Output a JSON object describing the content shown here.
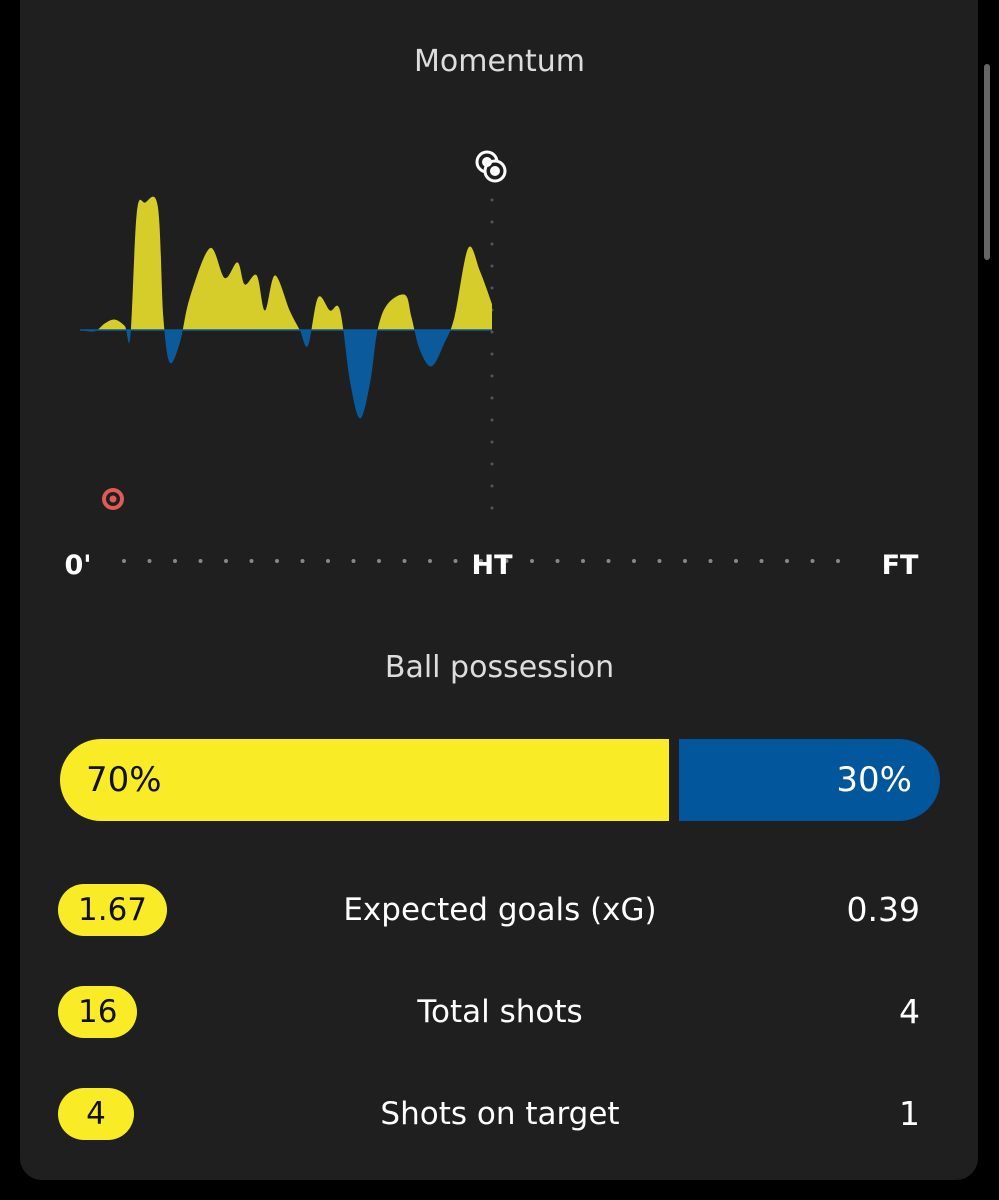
{
  "title": "Momentum",
  "momentum": {
    "type": "area",
    "x": [
      0,
      1.6,
      2.7,
      3.8,
      4.9,
      5.5,
      6.2,
      7.1,
      8.5,
      9.1,
      9.8,
      10.9,
      12,
      14.2,
      15.8,
      17.2,
      18,
      19.3,
      20.2,
      21.3,
      22.9,
      24,
      24.9,
      26,
      27.3,
      28.4,
      29.5,
      30.6,
      31.7,
      32.5,
      33.6,
      35.5,
      36.2,
      37.1,
      38.4,
      39.8,
      40.9,
      42.4,
      43.7,
      45
    ],
    "values": [
      0,
      -1,
      5,
      8,
      3,
      -5,
      90,
      98,
      95,
      10,
      -25,
      -10,
      25,
      63,
      40,
      52,
      35,
      42,
      15,
      42,
      15,
      0,
      -12,
      25,
      15,
      15,
      -40,
      -68,
      -40,
      0,
      20,
      27,
      10,
      -15,
      -28,
      -10,
      10,
      63,
      45,
      20
    ],
    "xlim": [
      0,
      90
    ],
    "ylim": [
      -100,
      100
    ],
    "positive_color": "#d6cc2a",
    "negative_color": "#0a5a9c"
  },
  "timeline": {
    "start": "0'",
    "half": "HT",
    "end": "FT"
  },
  "possession": {
    "title": "Ball possession",
    "values": [
      70,
      30
    ],
    "value_labels": [
      "70%",
      "30%"
    ],
    "colors": [
      "#f9ec27",
      "#02569b"
    ]
  },
  "stats": [
    {
      "home": "1.67",
      "label": "Expected goals (xG)",
      "away": "0.39"
    },
    {
      "home": "16",
      "label": "Total shots",
      "away": "4"
    },
    {
      "home": "4",
      "label": "Shots on target",
      "away": "1"
    }
  ]
}
